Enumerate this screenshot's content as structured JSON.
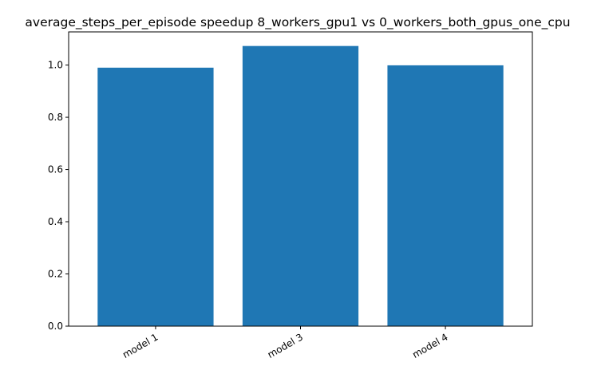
{
  "chart_data": {
    "type": "bar",
    "title": "average_steps_per_episode speedup 8_workers_gpu1 vs 0_workers_both_gpus_one_cpu",
    "xlabel": "",
    "ylabel": "",
    "categories": [
      "model 1",
      "model 3",
      "model 4"
    ],
    "values": [
      0.99,
      1.073,
      0.999
    ],
    "ylim": [
      0,
      1.127
    ],
    "yticks": [
      0.0,
      0.2,
      0.4,
      0.6,
      0.8,
      1.0
    ],
    "ytick_labels": [
      "0.0",
      "0.2",
      "0.4",
      "0.6",
      "0.8",
      "1.0"
    ],
    "grid": false,
    "legend": "none",
    "bar_color": "#1f77b4",
    "xtick_rotation_deg": -30
  }
}
